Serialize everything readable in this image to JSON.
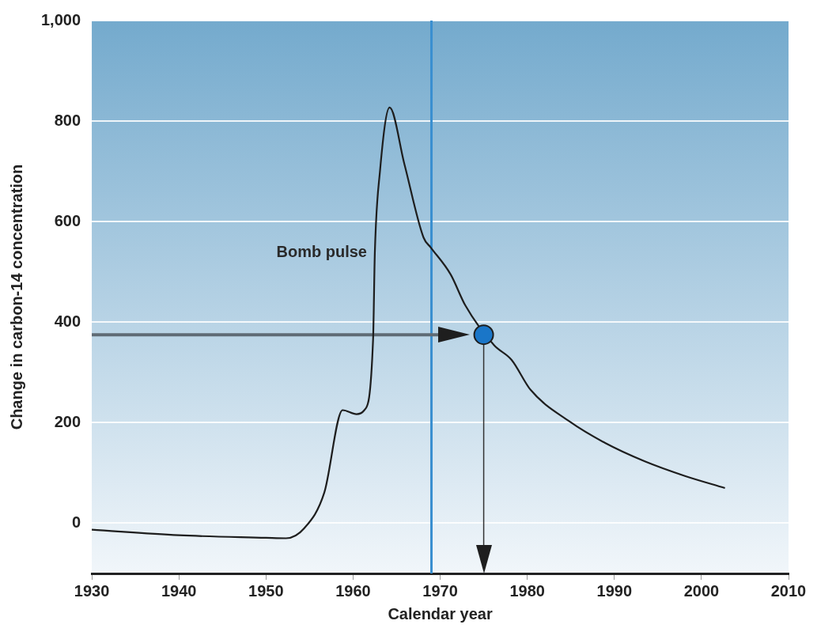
{
  "chart_data": {
    "type": "line",
    "xlabel": "Calendar year",
    "ylabel": "Change in carbon-14 concentration",
    "xlim": [
      1930,
      2010
    ],
    "xticks": [
      1930,
      1940,
      1950,
      1960,
      1970,
      1980,
      1990,
      2000,
      2010
    ],
    "ylim": [
      -100,
      1000
    ],
    "yticks": [
      0,
      200,
      400,
      600,
      800,
      {
        "value": 1000,
        "label": "1,000"
      }
    ],
    "grid": "y",
    "legend": false,
    "series": [
      {
        "type": "line",
        "color": "#1e1e1e",
        "marker": "none",
        "line_style": "solid",
        "x": [
          1930,
          1940,
          1950,
          1952.3,
          1954.4,
          1956.7,
          1958.8,
          1960.4,
          1961.3,
          1962.3,
          1962.5,
          1963.1,
          1964.2,
          1965.9,
          1968.1,
          1968.9,
          1971.2,
          1972.9,
          1976.2,
          1978.2,
          1980.4,
          1984.8,
          1988.9,
          1993.5,
          1998.1,
          2002.7
        ],
        "values": [
          -13,
          -24,
          -29,
          -30,
          -10,
          61,
          225,
          217,
          225,
          366,
          538,
          702,
          827,
          714,
          568,
          549,
          495,
          433,
          354,
          325,
          265,
          203,
          160,
          123,
          94,
          70
        ]
      },
      {
        "type": "scatter",
        "color": "#1a76c8",
        "marker": "circle",
        "x": [
          1975
        ],
        "values": [
          375
        ]
      }
    ],
    "ref_lines": [
      {
        "axis": "x",
        "value": 1969,
        "color": "#3a8fd0",
        "line_style": "solid"
      },
      {
        "axis": "y",
        "value": 375,
        "color": "#5f6b75",
        "line_style": "solid"
      },
      {
        "axis": "x",
        "value": 1975,
        "color": "#333333",
        "line_style": "solid"
      }
    ],
    "annotations": [
      "Bomb pulse"
    ]
  }
}
